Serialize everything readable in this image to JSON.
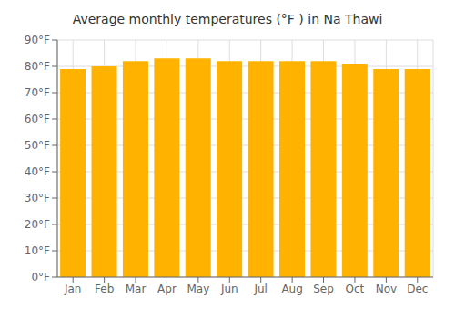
{
  "chart_data": {
    "type": "bar",
    "title": "Average monthly temperatures (°F ) in Na Thawi",
    "categories": [
      "Jan",
      "Feb",
      "Mar",
      "Apr",
      "May",
      "Jun",
      "Jul",
      "Aug",
      "Sep",
      "Oct",
      "Nov",
      "Dec"
    ],
    "values": [
      79,
      80,
      82,
      83,
      83,
      82,
      82,
      82,
      82,
      81,
      79,
      79
    ],
    "color": "#FFB300",
    "ylim": [
      0,
      90
    ],
    "yticks": [
      {
        "value": 0,
        "label": "0°F"
      },
      {
        "value": 10,
        "label": "10°F"
      },
      {
        "value": 20,
        "label": "20°F"
      },
      {
        "value": 30,
        "label": "30°F"
      },
      {
        "value": 40,
        "label": "40°F"
      },
      {
        "value": 50,
        "label": "50°F"
      },
      {
        "value": 60,
        "label": "60°F"
      },
      {
        "value": 70,
        "label": "70°F"
      },
      {
        "value": 80,
        "label": "80°F"
      },
      {
        "value": 90,
        "label": "90°F"
      }
    ],
    "grid": true
  }
}
